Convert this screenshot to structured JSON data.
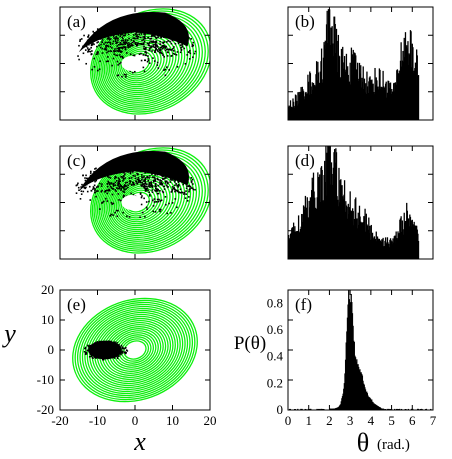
{
  "colors": {
    "trajectory": "#00ee00",
    "points": "#000000",
    "frame": "#000000"
  },
  "chart_data": [
    {
      "type": "scatter",
      "panel": "a",
      "label": "(a)",
      "green_orbit": {
        "center": [
          0,
          0
        ],
        "radius_range": [
          3,
          16
        ]
      },
      "black_cloud": {
        "center": [
          0,
          3
        ],
        "radius_range": [
          2,
          14
        ]
      },
      "white_hole": {
        "center": [
          -1,
          0
        ],
        "radius": 2
      }
    },
    {
      "type": "bar",
      "panel": "b",
      "label": "(b)",
      "x": [
        0.1,
        0.5,
        0.9,
        1.3,
        1.7,
        2.0,
        2.3,
        2.7,
        3.1,
        3.5,
        3.9,
        4.3,
        4.7,
        5.1,
        5.5,
        5.8,
        6.1
      ],
      "values": [
        0.12,
        0.18,
        0.28,
        0.33,
        0.48,
        0.86,
        0.55,
        0.42,
        0.43,
        0.36,
        0.28,
        0.33,
        0.28,
        0.22,
        0.56,
        0.62,
        0.42
      ]
    },
    {
      "type": "scatter",
      "panel": "c",
      "label": "(c)",
      "green_orbit": {
        "center": [
          0,
          0
        ],
        "radius_range": [
          3,
          16
        ]
      },
      "black_cloud": {
        "center": [
          0,
          3
        ],
        "radius_range": [
          2,
          14
        ]
      },
      "white_hole": {
        "center": [
          -1,
          0
        ],
        "radius": 2
      }
    },
    {
      "type": "bar",
      "panel": "d",
      "label": "(d)",
      "x": [
        0.1,
        0.5,
        0.9,
        1.3,
        1.6,
        1.9,
        2.2,
        2.5,
        2.9,
        3.3,
        3.7,
        4.1,
        4.5,
        4.9,
        5.3,
        5.7,
        6.1
      ],
      "values": [
        0.2,
        0.28,
        0.4,
        0.55,
        0.6,
        0.82,
        0.74,
        0.5,
        0.46,
        0.36,
        0.3,
        0.18,
        0.16,
        0.12,
        0.22,
        0.34,
        0.22
      ]
    },
    {
      "type": "scatter",
      "panel": "e",
      "label": "(e)",
      "xlabel": "x",
      "ylabel": "y",
      "xlim": [
        -20,
        20
      ],
      "ylim": [
        -20,
        20
      ],
      "xticks": [
        -20,
        -10,
        0,
        10,
        20
      ],
      "yticks": [
        -20,
        -10,
        0,
        10,
        20
      ],
      "green_orbit": {
        "center": [
          0,
          0
        ],
        "radius_range": [
          3,
          17
        ]
      },
      "black_cloud": {
        "center": [
          -8,
          0
        ],
        "half_size": [
          4.5,
          2.5
        ]
      }
    },
    {
      "type": "bar",
      "panel": "f",
      "label": "(f)",
      "xlabel_symbol": "θ",
      "xlabel_unit": "(rad.)",
      "ylabel": "P(θ)",
      "xlim": [
        0,
        7
      ],
      "ylim": [
        0,
        0.9
      ],
      "xticks": [
        0,
        1,
        2,
        3,
        4,
        5,
        6,
        7
      ],
      "yticks": [
        0,
        0.2,
        0.4,
        0.6,
        0.8
      ],
      "x": [
        2.2,
        2.4,
        2.5,
        2.6,
        2.7,
        2.75,
        2.8,
        2.85,
        2.9,
        2.95,
        3.0,
        3.05,
        3.1,
        3.15,
        3.2,
        3.3,
        3.4,
        3.5,
        3.6,
        3.7,
        3.8,
        3.9,
        4.0,
        4.1,
        4.3,
        4.5
      ],
      "values": [
        0.01,
        0.02,
        0.04,
        0.1,
        0.22,
        0.38,
        0.55,
        0.72,
        0.86,
        0.89,
        0.83,
        0.74,
        0.62,
        0.52,
        0.44,
        0.36,
        0.3,
        0.26,
        0.22,
        0.16,
        0.12,
        0.1,
        0.08,
        0.05,
        0.03,
        0.01
      ]
    }
  ]
}
